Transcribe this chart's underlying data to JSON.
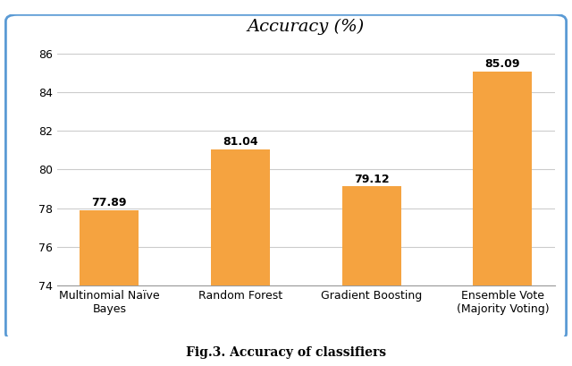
{
  "categories": [
    "Multinomial Naïve\nBayes",
    "Random Forest",
    "Gradient Boosting",
    "Ensemble Vote\n(Majority Voting)"
  ],
  "values": [
    77.89,
    81.04,
    79.12,
    85.09
  ],
  "bar_color": "#F5A340",
  "title": "Accuracy (%)",
  "ylim": [
    74,
    86.5
  ],
  "yticks": [
    74,
    76,
    78,
    80,
    82,
    84,
    86
  ],
  "bar_labels": [
    "77.89",
    "81.04",
    "79.12",
    "85.09"
  ],
  "title_fontsize": 14,
  "label_fontsize": 9,
  "bar_label_fontsize": 9,
  "caption": "Fig.3. Accuracy of classifiers",
  "caption_fontsize": 10,
  "background_color": "#ffffff",
  "box_edge_color": "#5b9bd5",
  "grid_color": "#cccccc"
}
